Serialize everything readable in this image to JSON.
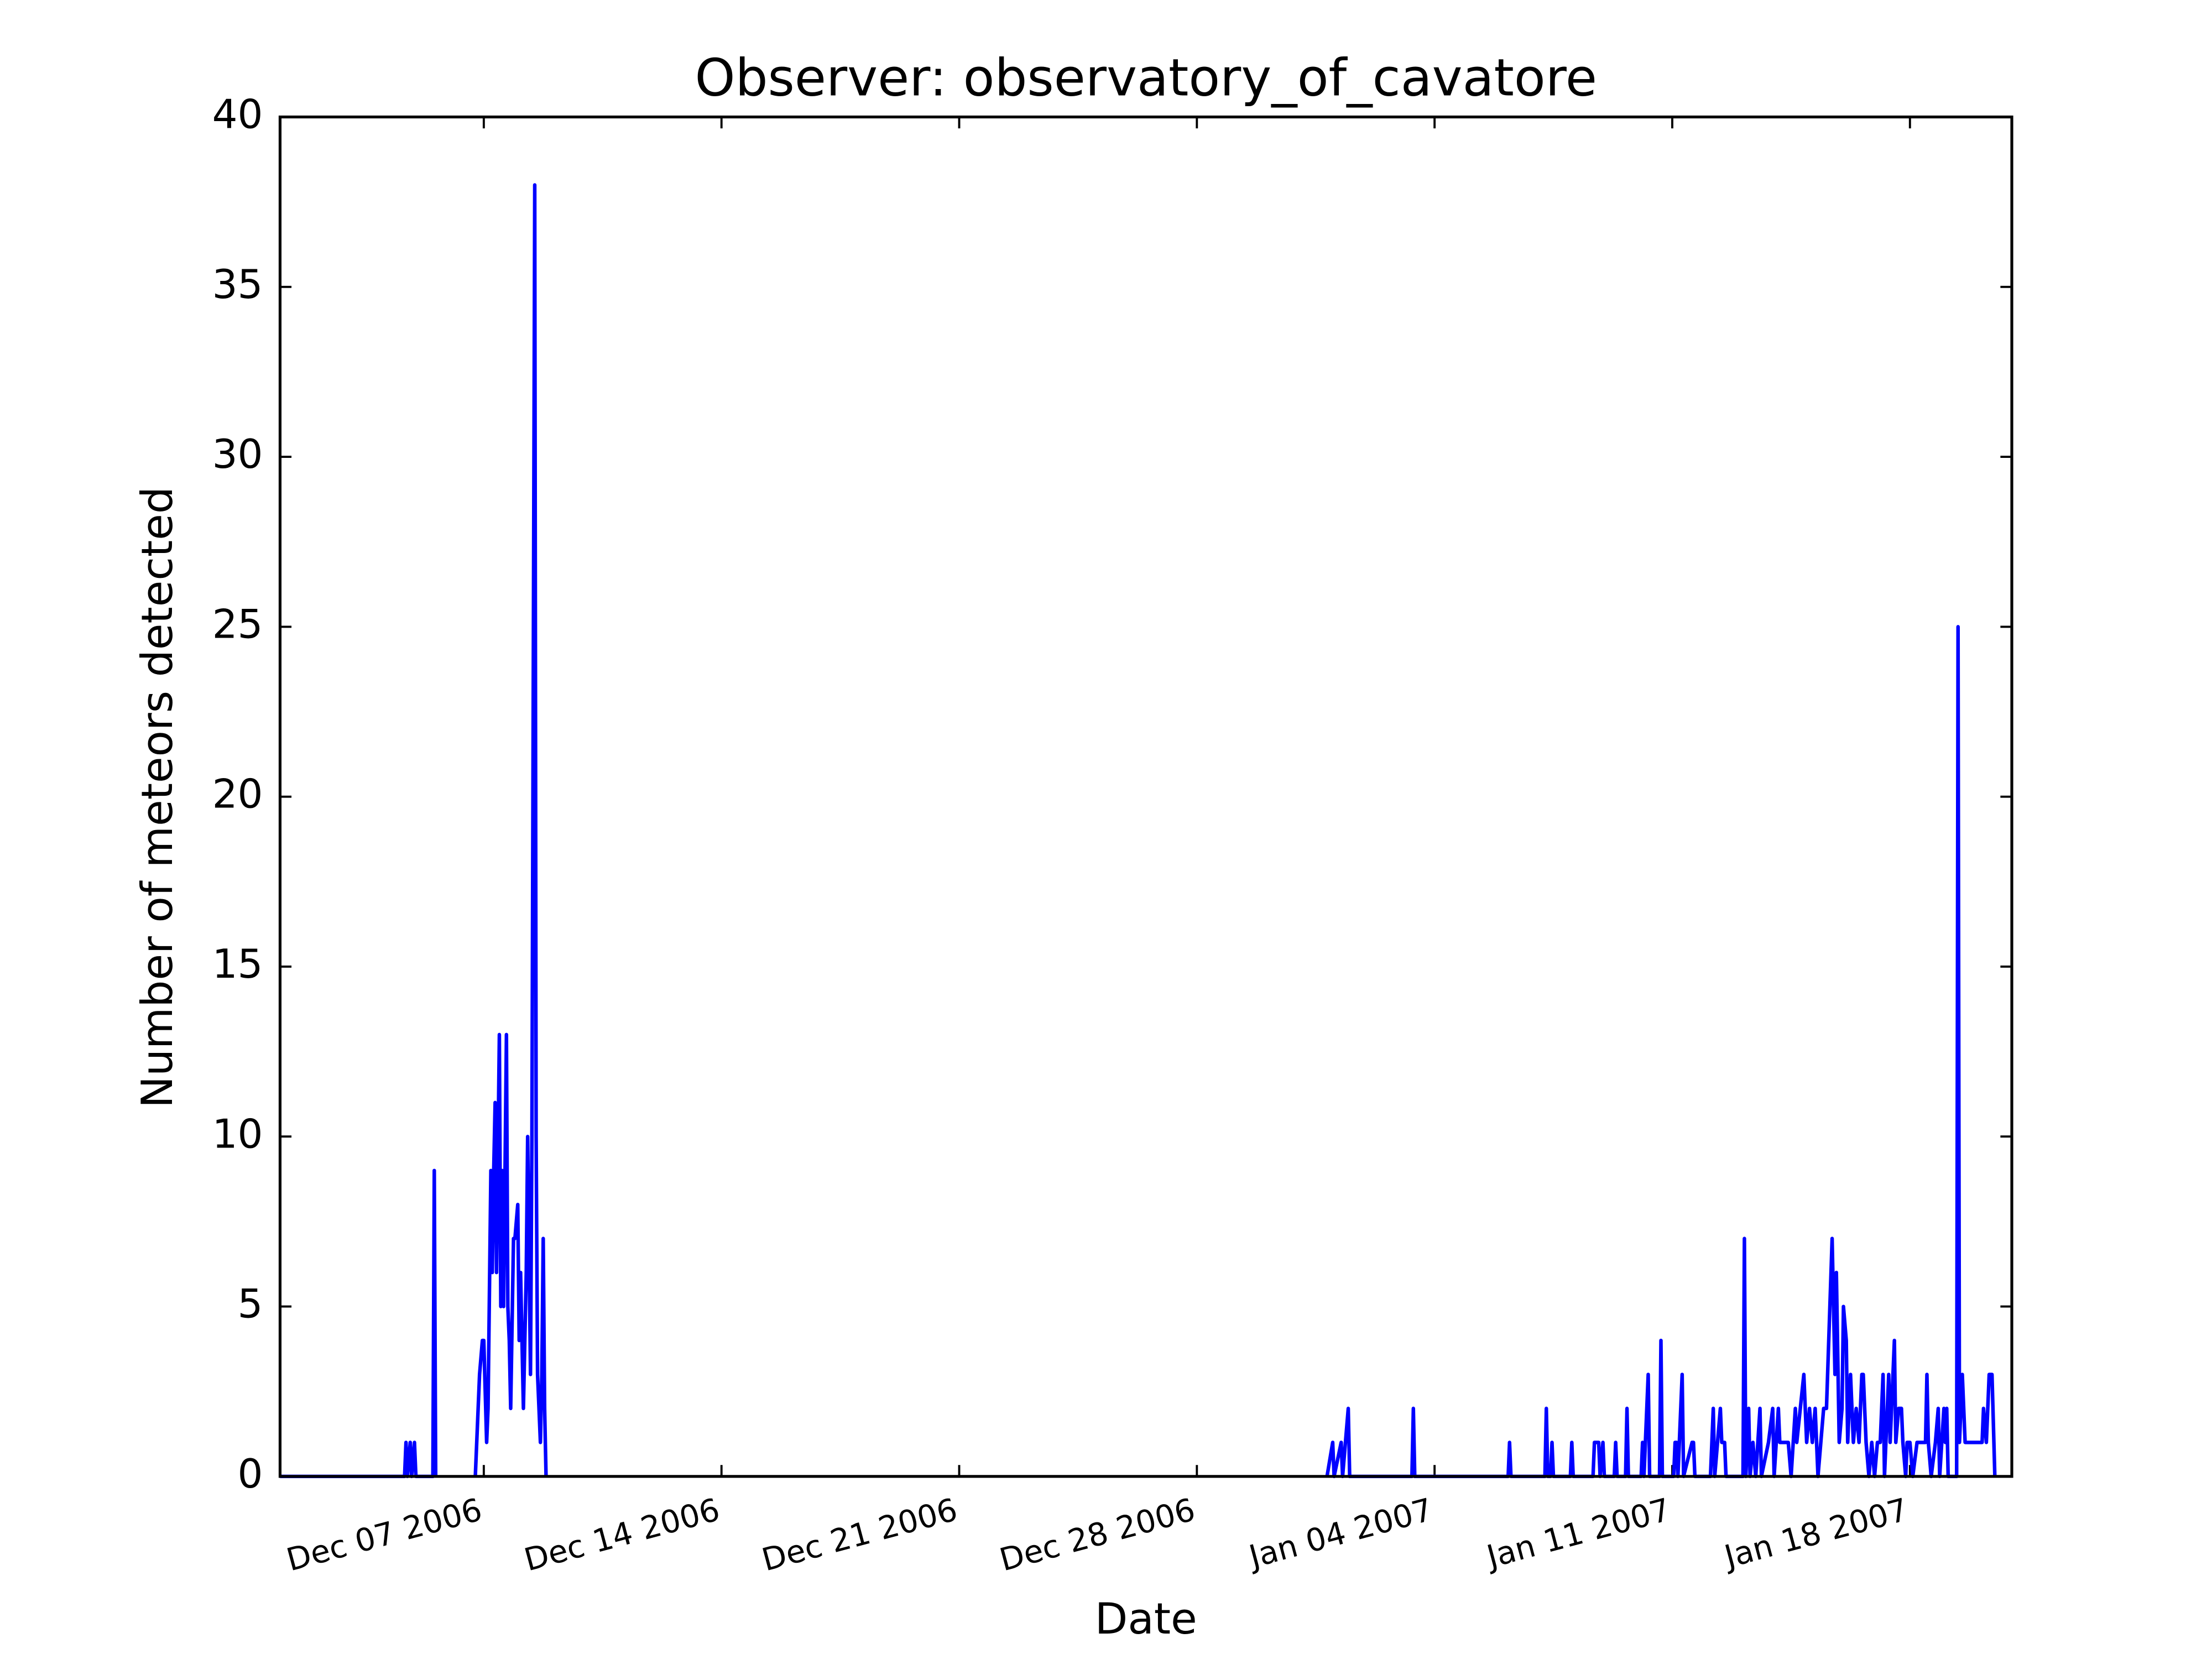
{
  "chart_data": {
    "type": "line",
    "title": "Observer: observatory_of_cavatore",
    "xlabel": "Date",
    "ylabel": "Number of meteors detected",
    "color": "#0000ff",
    "xlim": [
      "2006-12-01 00:00",
      "2007-01-21 00:00"
    ],
    "xticks": [
      {
        "value": "2006-12-07 00:00",
        "label": "Dec 07 2006"
      },
      {
        "value": "2006-12-14 00:00",
        "label": "Dec 14 2006"
      },
      {
        "value": "2006-12-21 00:00",
        "label": "Dec 21 2006"
      },
      {
        "value": "2006-12-28 00:00",
        "label": "Dec 28 2006"
      },
      {
        "value": "2007-01-04 00:00",
        "label": "Jan 04 2007"
      },
      {
        "value": "2007-01-11 00:00",
        "label": "Jan 11 2007"
      },
      {
        "value": "2007-01-18 00:00",
        "label": "Jan 18 2007"
      }
    ],
    "ylim": [
      0,
      40
    ],
    "yticks": [
      0,
      5,
      10,
      15,
      20,
      25,
      30,
      35,
      40
    ],
    "x": [
      "2006-12-01 00:00",
      "2006-12-04 16:00",
      "2006-12-04 17:00",
      "2006-12-04 18:00",
      "2006-12-04 20:00",
      "2006-12-04 21:00",
      "2006-12-04 23:00",
      "2006-12-05 00:00",
      "2006-12-05 12:00",
      "2006-12-05 13:00",
      "2006-12-05 14:00",
      "2006-12-05 15:00",
      "2006-12-06 18:00",
      "2006-12-06 21:00",
      "2006-12-06 23:00",
      "2006-12-07 00:00",
      "2006-12-07 02:00",
      "2006-12-07 03:00",
      "2006-12-07 05:00",
      "2006-12-07 06:00",
      "2006-12-07 07:00",
      "2006-12-07 08:00",
      "2006-12-07 09:00",
      "2006-12-07 11:00",
      "2006-12-07 12:00",
      "2006-12-07 13:00",
      "2006-12-07 14:00",
      "2006-12-07 16:00",
      "2006-12-07 17:00",
      "2006-12-07 18:00",
      "2006-12-07 19:00",
      "2006-12-07 21:00",
      "2006-12-07 22:00",
      "2006-12-08 00:00",
      "2006-12-08 01:00",
      "2006-12-08 02:00",
      "2006-12-08 03:00",
      "2006-12-08 04:00",
      "2006-12-08 06:00",
      "2006-12-08 07:00",
      "2006-12-08 09:00",
      "2006-12-08 10:00",
      "2006-12-08 12:00",
      "2006-12-08 13:00",
      "2006-12-08 14:00",
      "2006-12-08 16:00",
      "2006-12-08 17:00",
      "2006-12-08 18:00",
      "2006-12-08 19:00",
      "2006-12-08 20:00",
      "2006-12-08 21:00",
      "2006-12-31 20:00",
      "2007-01-01 00:00",
      "2007-01-01 01:00",
      "2007-01-01 06:00",
      "2007-01-01 07:00",
      "2007-01-01 11:00",
      "2007-01-01 12:00",
      "2007-01-03 08:00",
      "2007-01-03 09:00",
      "2007-01-03 10:00",
      "2007-01-06 04:00",
      "2007-01-06 05:00",
      "2007-01-06 06:00",
      "2007-01-07 06:00",
      "2007-01-07 07:00",
      "2007-01-07 08:00",
      "2007-01-07 10:00",
      "2007-01-07 11:00",
      "2007-01-07 12:00",
      "2007-01-08 00:00",
      "2007-01-08 01:00",
      "2007-01-08 02:00",
      "2007-01-08 16:00",
      "2007-01-08 17:00",
      "2007-01-08 20:00",
      "2007-01-08 21:00",
      "2007-01-08 23:00",
      "2007-01-09 00:00",
      "2007-01-09 07:00",
      "2007-01-09 08:00",
      "2007-01-09 09:00",
      "2007-01-09 15:00",
      "2007-01-09 16:00",
      "2007-01-09 17:00",
      "2007-01-10 02:00",
      "2007-01-10 03:00",
      "2007-01-10 04:00",
      "2007-01-10 07:00",
      "2007-01-10 08:00",
      "2007-01-10 15:00",
      "2007-01-10 16:00",
      "2007-01-10 17:00",
      "2007-01-11 01:00",
      "2007-01-11 02:00",
      "2007-01-11 03:00",
      "2007-01-11 04:00",
      "2007-01-11 07:00",
      "2007-01-11 08:00",
      "2007-01-11 14:00",
      "2007-01-11 15:00",
      "2007-01-11 16:00",
      "2007-01-12 03:00",
      "2007-01-12 04:00",
      "2007-01-12 05:00",
      "2007-01-12 06:00",
      "2007-01-12 10:00",
      "2007-01-12 11:00",
      "2007-01-12 13:00",
      "2007-01-12 14:00",
      "2007-01-13 02:00",
      "2007-01-13 03:00",
      "2007-01-13 04:00",
      "2007-01-13 06:00",
      "2007-01-13 07:00",
      "2007-01-13 09:00",
      "2007-01-13 11:00",
      "2007-01-13 14:00",
      "2007-01-13 15:00",
      "2007-01-13 20:00",
      "2007-01-13 23:00",
      "2007-01-14 00:00",
      "2007-01-14 03:00",
      "2007-01-14 04:00",
      "2007-01-14 07:00",
      "2007-01-14 10:00",
      "2007-01-14 12:00",
      "2007-01-14 15:00",
      "2007-01-14 16:00",
      "2007-01-14 21:00",
      "2007-01-14 23:00",
      "2007-01-15 01:00",
      "2007-01-15 03:00",
      "2007-01-15 05:00",
      "2007-01-15 07:00",
      "2007-01-15 11:00",
      "2007-01-15 13:00",
      "2007-01-15 17:00",
      "2007-01-15 19:00",
      "2007-01-15 20:00",
      "2007-01-15 22:00",
      "2007-01-16 00:00",
      "2007-01-16 01:00",
      "2007-01-16 03:00",
      "2007-01-16 04:00",
      "2007-01-16 06:00",
      "2007-01-16 08:00",
      "2007-01-16 10:00",
      "2007-01-16 12:00",
      "2007-01-16 14:00",
      "2007-01-16 15:00",
      "2007-01-16 17:00",
      "2007-01-16 19:00",
      "2007-01-16 21:00",
      "2007-01-16 23:00",
      "2007-01-17 01:00",
      "2007-01-17 03:00",
      "2007-01-17 05:00",
      "2007-01-17 06:00",
      "2007-01-17 09:00",
      "2007-01-17 10:00",
      "2007-01-17 13:00",
      "2007-01-17 14:00",
      "2007-01-17 16:00",
      "2007-01-17 18:00",
      "2007-01-17 19:00",
      "2007-01-17 21:00",
      "2007-01-17 22:00",
      "2007-01-18 00:00",
      "2007-01-18 02:00",
      "2007-01-18 05:00",
      "2007-01-18 11:00",
      "2007-01-18 12:00",
      "2007-01-18 13:00",
      "2007-01-18 15:00",
      "2007-01-18 18:00",
      "2007-01-18 20:00",
      "2007-01-18 21:00",
      "2007-01-19 00:00",
      "2007-01-19 01:00",
      "2007-01-19 02:00",
      "2007-01-19 03:00",
      "2007-01-19 09:00",
      "2007-01-19 10:00",
      "2007-01-19 11:00",
      "2007-01-19 13:00",
      "2007-01-19 15:00",
      "2007-01-19 19:00",
      "2007-01-19 23:00",
      "2007-01-20 03:00",
      "2007-01-20 04:00",
      "2007-01-20 06:00",
      "2007-01-20 08:00",
      "2007-01-20 10:00",
      "2007-01-20 12:00"
    ],
    "values": [
      0,
      0,
      1,
      0,
      1,
      0,
      1,
      0,
      0,
      9,
      0,
      null,
      0,
      3,
      4,
      4,
      1,
      2,
      9,
      6,
      9,
      11,
      6,
      13,
      5,
      9,
      5,
      13,
      5,
      4,
      2,
      7,
      7,
      8,
      4,
      6,
      4,
      2,
      6,
      10,
      3,
      10,
      38,
      10,
      3,
      1,
      3,
      7,
      2,
      0,
      null,
      0,
      1,
      0,
      1,
      0,
      2,
      0,
      0,
      2,
      0,
      0,
      1,
      0,
      0,
      2,
      0,
      0,
      1,
      0,
      0,
      1,
      0,
      0,
      1,
      1,
      0,
      1,
      0,
      0,
      1,
      0,
      0,
      2,
      0,
      0,
      1,
      0,
      3,
      0,
      0,
      4,
      0,
      0,
      1,
      1,
      0,
      3,
      0,
      1,
      1,
      0,
      0,
      1,
      2,
      0,
      2,
      1,
      1,
      0,
      0,
      7,
      0,
      2,
      0,
      1,
      0,
      2,
      0,
      1,
      2,
      0,
      2,
      1,
      1,
      1,
      0,
      2,
      1,
      3,
      1,
      2,
      1,
      2,
      0,
      2,
      2,
      7,
      3,
      6,
      1,
      2,
      5,
      4,
      1,
      3,
      1,
      2,
      1,
      3,
      3,
      1,
      0,
      1,
      0,
      1,
      1,
      3,
      0,
      3,
      1,
      4,
      1,
      2,
      2,
      1,
      0,
      1,
      1,
      0,
      1,
      1,
      3,
      1,
      0,
      1,
      2,
      0,
      2,
      1,
      2,
      0,
      0,
      25,
      1,
      3,
      1,
      1,
      1,
      1,
      2,
      1,
      3,
      3,
      0
    ]
  }
}
